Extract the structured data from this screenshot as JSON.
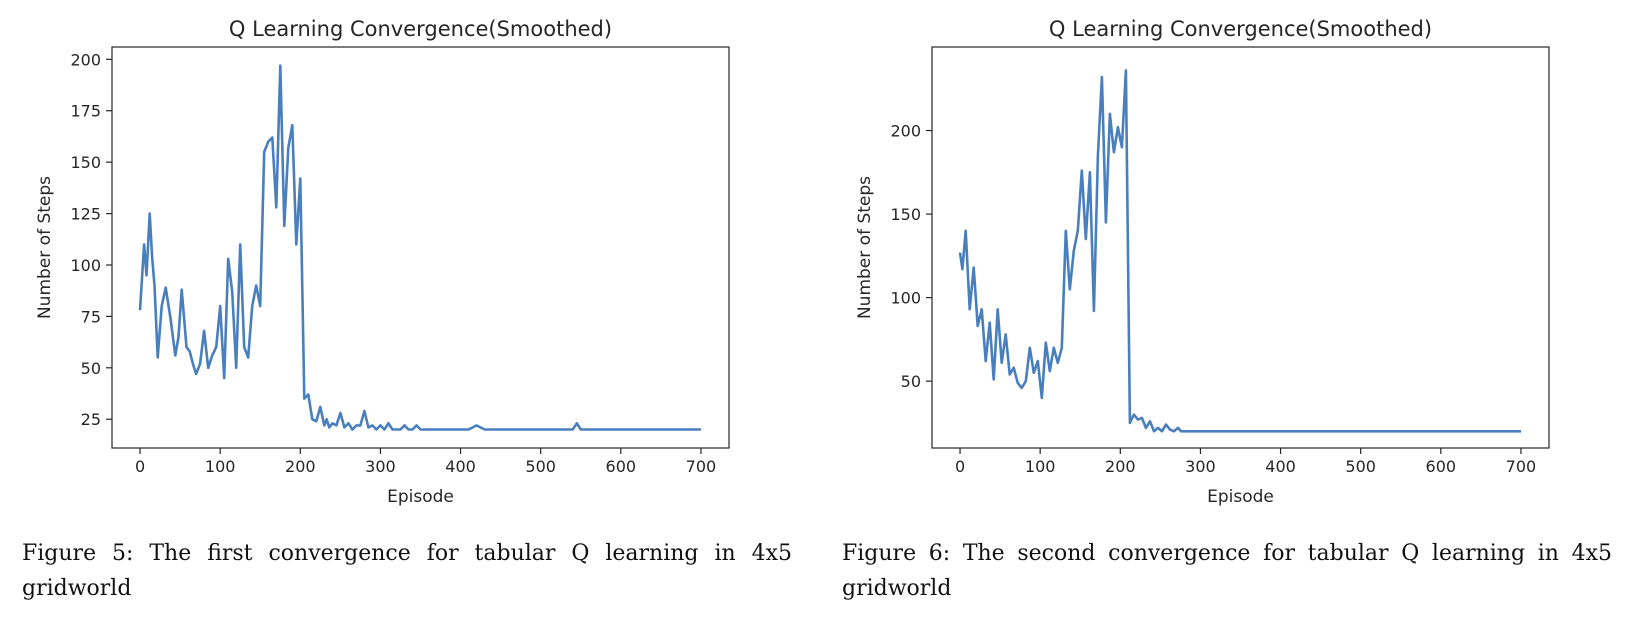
{
  "chart_data": [
    {
      "type": "line",
      "title": "Q Learning Convergence(Smoothed)",
      "xlabel": "Episode",
      "ylabel": "Number of Steps",
      "xlim": [
        -35,
        735
      ],
      "ylim": [
        11,
        206
      ],
      "xticks": [
        0,
        100,
        200,
        300,
        400,
        500,
        600,
        700
      ],
      "yticks": [
        25,
        50,
        75,
        100,
        125,
        150,
        175,
        200
      ],
      "grid": false,
      "line_color": "#4a7fbd",
      "series": [
        {
          "x": [
            0,
            5,
            8,
            12,
            15,
            18,
            22,
            27,
            32,
            38,
            44,
            48,
            52,
            58,
            62,
            66,
            70,
            75,
            80,
            85,
            90,
            95,
            100,
            105,
            110,
            115,
            120,
            125,
            130,
            135,
            140,
            145,
            150,
            155,
            160,
            165,
            170,
            175,
            180,
            185,
            190,
            195,
            200,
            205,
            210,
            215,
            220,
            225,
            230,
            233,
            236,
            240,
            245,
            250,
            255,
            260,
            265,
            270,
            275,
            280,
            285,
            290,
            295,
            300,
            305,
            310,
            315,
            320,
            325,
            330,
            335,
            340,
            345,
            350,
            355,
            360,
            370,
            380,
            390,
            400,
            410,
            420,
            430,
            440,
            450,
            500,
            540,
            545,
            550,
            600,
            650,
            700
          ],
          "y": [
            78,
            110,
            95,
            125,
            104,
            90,
            55,
            80,
            89,
            74,
            56,
            65,
            88,
            60,
            58,
            52,
            47,
            52,
            68,
            50,
            56,
            60,
            80,
            45,
            103,
            87,
            50,
            110,
            60,
            55,
            80,
            90,
            80,
            155,
            160,
            162,
            128,
            197,
            119,
            157,
            168,
            110,
            142,
            35,
            37,
            25,
            24,
            31,
            22,
            25,
            21,
            23,
            22,
            28,
            21,
            23,
            20,
            22,
            22,
            29,
            21,
            22,
            20,
            22,
            20,
            23,
            20,
            20,
            20,
            22,
            20,
            20,
            22,
            20,
            20,
            20,
            20,
            20,
            20,
            20,
            20,
            22,
            20,
            20,
            20,
            20,
            20,
            23,
            20,
            20,
            20,
            20
          ]
        }
      ]
    },
    {
      "type": "line",
      "title": "Q Learning Convergence(Smoothed)",
      "xlabel": "Episode",
      "ylabel": "Number of Steps",
      "xlim": [
        -35,
        735
      ],
      "ylim": [
        10,
        250
      ],
      "xticks": [
        0,
        100,
        200,
        300,
        400,
        500,
        600,
        700
      ],
      "yticks": [
        50,
        100,
        150,
        200
      ],
      "grid": false,
      "line_color": "#4a7fbd",
      "series": [
        {
          "x": [
            0,
            3,
            7,
            12,
            17,
            22,
            27,
            32,
            37,
            42,
            47,
            52,
            57,
            62,
            67,
            72,
            77,
            82,
            87,
            92,
            97,
            102,
            107,
            112,
            117,
            122,
            127,
            132,
            137,
            142,
            147,
            152,
            157,
            162,
            167,
            172,
            177,
            182,
            187,
            192,
            197,
            202,
            207,
            212,
            217,
            222,
            227,
            232,
            237,
            242,
            247,
            252,
            257,
            262,
            267,
            272,
            276,
            280,
            285,
            290,
            295,
            300,
            310,
            320,
            330,
            340,
            350,
            360,
            370,
            380,
            400,
            420,
            440,
            460,
            480,
            500,
            550,
            600,
            650,
            700
          ],
          "y": [
            127,
            117,
            140,
            93,
            118,
            83,
            93,
            62,
            85,
            51,
            93,
            61,
            78,
            54,
            58,
            49,
            46,
            50,
            70,
            55,
            62,
            40,
            73,
            56,
            70,
            61,
            70,
            140,
            105,
            128,
            140,
            176,
            135,
            175,
            92,
            185,
            232,
            145,
            210,
            187,
            202,
            190,
            236,
            25,
            30,
            27,
            28,
            22,
            26,
            20,
            22,
            20,
            24,
            21,
            20,
            22,
            20,
            20,
            20,
            20,
            20,
            20,
            20,
            20,
            20,
            20,
            20,
            20,
            20,
            20,
            20,
            20,
            20,
            20,
            20,
            20,
            20,
            20,
            20,
            20
          ]
        }
      ]
    }
  ],
  "captions": [
    "Figure 5: The first convergence for tabular Q learning in 4x5 gridworld",
    "Figure 6: The second convergence for tabular Q learning in 4x5 gridworld"
  ]
}
